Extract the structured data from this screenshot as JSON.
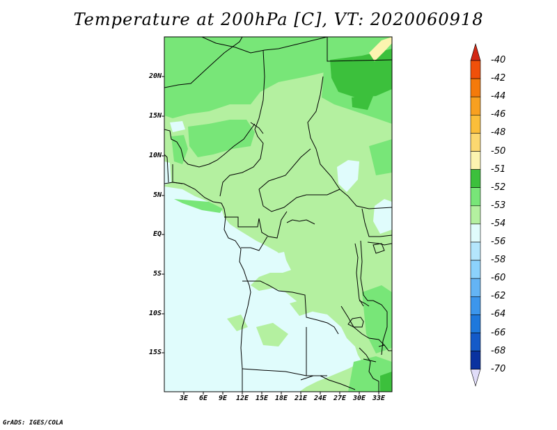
{
  "title": "Temperature at 200hPa [C], VT: 2020060918",
  "credit": "GrADS: IGES/COLA",
  "lat_labels": [
    "20N",
    "15N",
    "10N",
    "5N",
    "EQ",
    "5S",
    "10S",
    "15S"
  ],
  "lon_labels": [
    "3E",
    "6E",
    "9E",
    "12E",
    "15E",
    "18E",
    "21E",
    "24E",
    "27E",
    "30E",
    "33E"
  ],
  "colorbar": {
    "labels": [
      "-40",
      "-42",
      "-44",
      "-46",
      "-48",
      "-50",
      "-51",
      "-52",
      "-53",
      "-54",
      "-56",
      "-58",
      "-60",
      "-62",
      "-64",
      "-66",
      "-68",
      "-70"
    ],
    "colors": [
      "#e8321c",
      "#f0500a",
      "#f47a0a",
      "#f8a020",
      "#fbbe3a",
      "#fcd870",
      "#fcf4b0",
      "#3cc03c",
      "#78e678",
      "#b4f0a0",
      "#e0fcfc",
      "#b4e6fc",
      "#8cd2fc",
      "#64b4f4",
      "#3c96ec",
      "#1e78dc",
      "#145ac8",
      "#0a32a0",
      "#06107a"
    ],
    "top_arrow_color": "#d22814",
    "bottom_arrow_color": "#e0dcf8"
  },
  "map_colors": {
    "ocean_fill": "#e0fcfc",
    "light_green": "#b4f0a0",
    "mid_green": "#78e678",
    "dark_green": "#3cc03c",
    "yellow": "#fcf4b0"
  }
}
